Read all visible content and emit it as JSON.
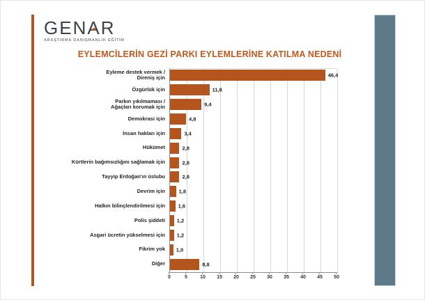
{
  "logo": {
    "name": "GENAR",
    "name_prefix": "GEN",
    "name_accent_letter": "A",
    "name_suffix": "R",
    "tagline": "ARAŞTIRMA DANIŞMANLIK EĞİTİM"
  },
  "title": "EYLEMCİLERİN GEZİ PARKI EYLEMLERİNE KATILMA NEDENİ",
  "colors": {
    "bar": "#B4551D",
    "title_text": "#C0581C",
    "accent_stripe": "#B5541E",
    "right_panel": "#5E7987",
    "gridline": "#D6D6D6"
  },
  "chart_data": {
    "type": "bar",
    "orientation": "horizontal",
    "title": "EYLEMCİLERİN GEZİ PARKI EYLEMLERİNE KATILMA NEDENİ",
    "categories": [
      "Eyleme destek vermek /\nDireniş için",
      "Özgürlük için",
      "Parkın yıkılmaması /\nAğaçları korumak için",
      "Demokrasi için",
      "İnsan hakları için",
      "Hükümet",
      "Kürtlerin bağımsızlığını sağlamak için",
      "Tayyip Erdoğan'ın üslubu",
      "Devrim için",
      "Halkın bilinçlendirilmesi için",
      "Polis şiddeti",
      "Asgari ücretin yükselmesi için",
      "Fikrim yok",
      "Diğer"
    ],
    "values": [
      46.4,
      11.8,
      9.4,
      4.8,
      3.4,
      2.8,
      2.8,
      2.8,
      1.8,
      1.6,
      1.2,
      1.2,
      1.0,
      8.8
    ],
    "value_labels": [
      "46,4",
      "11,8",
      "9,4",
      "4,8",
      "3,4",
      "2,8",
      "2,8",
      "2,8",
      "1,8",
      "1,6",
      "1,2",
      "1,2",
      "1,0",
      "8,8"
    ],
    "x_ticks": [
      0,
      5,
      10,
      15,
      20,
      25,
      30,
      35,
      40,
      45,
      50
    ],
    "xlim": [
      0,
      50
    ],
    "xlabel": "",
    "ylabel": "",
    "grid": "vertical",
    "legend": "none"
  }
}
